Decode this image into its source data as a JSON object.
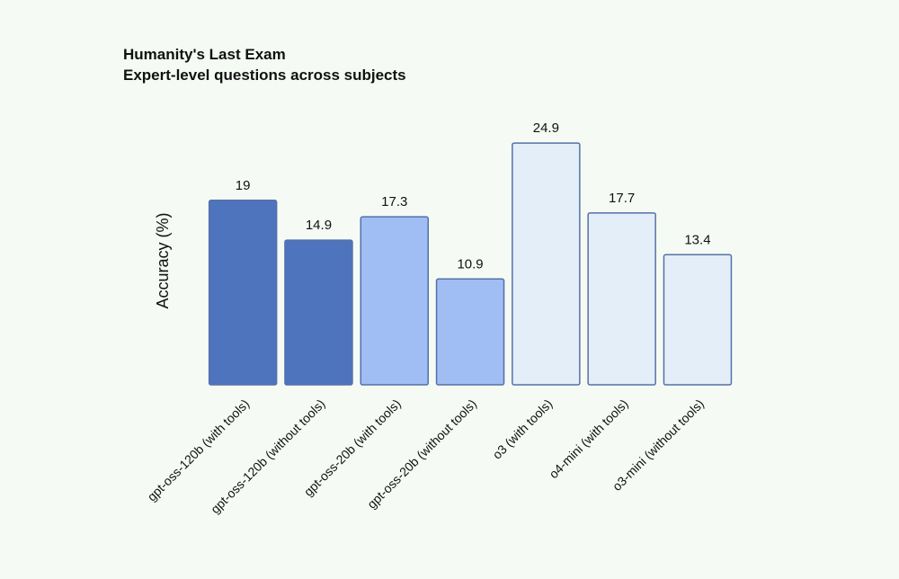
{
  "chart_data": {
    "type": "bar",
    "title": "Humanity's Last Exam",
    "subtitle": "Expert-level questions across subjects",
    "y_label": "Accuracy (%)",
    "categories": [
      "gpt-oss-120b (with tools)",
      "gpt-oss-120b (without tools)",
      "gpt-oss-20b (with tools)",
      "gpt-oss-20b (without tools)",
      "o3 (with tools)",
      "o4-mini (with tools)",
      "o3-mini (without tools)"
    ],
    "values": [
      19,
      14.9,
      17.3,
      10.9,
      24.9,
      17.7,
      13.4
    ],
    "colors": [
      "#4f74be",
      "#4f74be",
      "#a0bef3",
      "#a0bef3",
      "#e3eef8",
      "#e3eef8",
      "#e3eef8"
    ],
    "ylim": [
      0,
      25
    ]
  }
}
